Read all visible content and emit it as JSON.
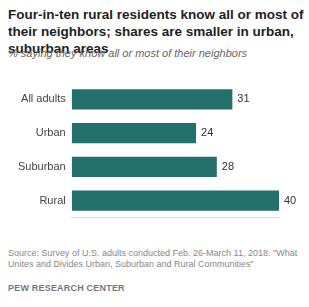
{
  "chart_data": {
    "type": "bar",
    "orientation": "horizontal",
    "title": "Four-in-ten rural residents know all or most of their neighbors; shares are smaller in urban, suburban areas",
    "subtitle": "% saying they know all or most of their neighbors",
    "categories": [
      "All adults",
      "Urban",
      "Suburban",
      "Rural"
    ],
    "values": [
      31,
      24,
      28,
      40
    ],
    "color": "#236f6a",
    "xlim": [
      0,
      40
    ],
    "data_labels": true,
    "tick_labels": "y",
    "grid": false,
    "source": "Source: Survey of U.S. adults conducted Feb. 26-March 11, 2018. \"What Unites and Divides Urban, Suburban and Rural Communities\"",
    "credit": "PEW RESEARCH CENTER"
  }
}
